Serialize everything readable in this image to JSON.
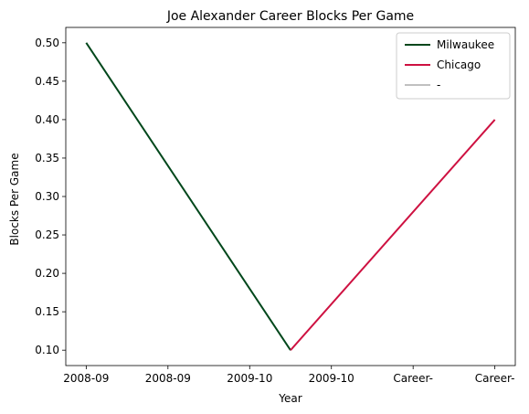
{
  "chart_data": {
    "type": "line",
    "title": "Joe Alexander Career Blocks Per Game",
    "xlabel": "Year",
    "ylabel": "Blocks Per Game",
    "x_tick_labels": [
      "2008-09",
      "2008-09",
      "2009-10",
      "2009-10",
      "Career-",
      "Career-"
    ],
    "ylim": [
      0.08,
      0.52
    ],
    "y_ticks": [
      0.1,
      0.15,
      0.2,
      0.25,
      0.3,
      0.35,
      0.4,
      0.45,
      0.5
    ],
    "grid": false,
    "legend_position": "top-right",
    "series": [
      {
        "name": "Milwaukee",
        "color": "#00471B",
        "points": [
          [
            0,
            0.5
          ],
          [
            2.5,
            0.1
          ]
        ]
      },
      {
        "name": "Chicago",
        "color": "#CE1141",
        "points": [
          [
            2.5,
            0.1
          ],
          [
            5,
            0.4
          ]
        ]
      },
      {
        "name": "-",
        "color": "#C0C0C0",
        "points": []
      }
    ]
  }
}
